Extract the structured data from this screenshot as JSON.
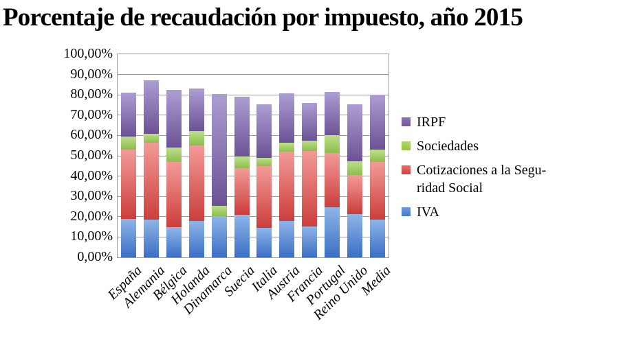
{
  "title": "Porcentaje de recaudación por impuesto, año 2015",
  "chart_data": {
    "type": "bar",
    "stacked": true,
    "title": "Porcentaje de recaudación por impuesto, año 2015",
    "xlabel": "",
    "ylabel": "",
    "ylim": [
      0,
      100
    ],
    "grid": true,
    "legend_position": "right",
    "y_ticks": [
      "100,00%",
      "90,00%",
      "80,00%",
      "70,00%",
      "60,00%",
      "50,00%",
      "40,00%",
      "30,00%",
      "20,00%",
      "10,00%",
      "0,00%"
    ],
    "categories": [
      "España",
      "Alemania",
      "Bélgica",
      "Holanda",
      "Dinamarca",
      "Suecia",
      "Italia",
      "Austria",
      "Francia",
      "Portugal",
      "Reino Unido",
      "Media"
    ],
    "series": [
      {
        "name": "IVA",
        "color": "#4F81BD",
        "gradient": [
          "#8FB5E8",
          "#3B6FC4"
        ],
        "key_gradient": [
          "#6F9BDC",
          "#4678C2"
        ],
        "values": [
          19.0,
          18.7,
          15.0,
          18.0,
          20.3,
          21.0,
          14.6,
          18.0,
          15.3,
          24.8,
          21.4,
          18.7
        ]
      },
      {
        "name": "Cotizaciones a la Seguridad Social",
        "color": "#C0504D",
        "gradient": [
          "#F29B98",
          "#CB3E3B"
        ],
        "key_gradient": [
          "#E96E6A",
          "#D2403C"
        ],
        "values": [
          34.0,
          37.7,
          32.0,
          37.0,
          0.1,
          23.0,
          30.2,
          34.0,
          37.2,
          26.5,
          19.3,
          28.3
        ]
      },
      {
        "name": "Sociedades",
        "color": "#9BBB59",
        "gradient": [
          "#BCE08A",
          "#8DBD4D"
        ],
        "key_gradient": [
          "#B0D76A",
          "#96C344"
        ],
        "values": [
          6.5,
          4.4,
          7.0,
          7.3,
          5.1,
          5.8,
          4.3,
          4.6,
          4.8,
          8.7,
          6.6,
          5.9
        ]
      },
      {
        "name": "IRPF",
        "color": "#8064A2",
        "gradient": [
          "#AC9ED2",
          "#6C5295"
        ],
        "key_gradient": [
          "#8A70B4",
          "#73589E"
        ],
        "values": [
          21.5,
          26.5,
          28.5,
          20.7,
          55.0,
          29.3,
          26.3,
          24.2,
          18.8,
          21.3,
          28.0,
          27.3
        ]
      }
    ],
    "legend": [
      {
        "series": "IRPF",
        "label": "IRPF"
      },
      {
        "series": "Sociedades",
        "label": "Sociedades"
      },
      {
        "series": "Cotizaciones a la Seguridad Social",
        "label": "Cotizaciones a la Segu-\nridad Social"
      },
      {
        "series": "IVA",
        "label": "IVA"
      }
    ]
  }
}
